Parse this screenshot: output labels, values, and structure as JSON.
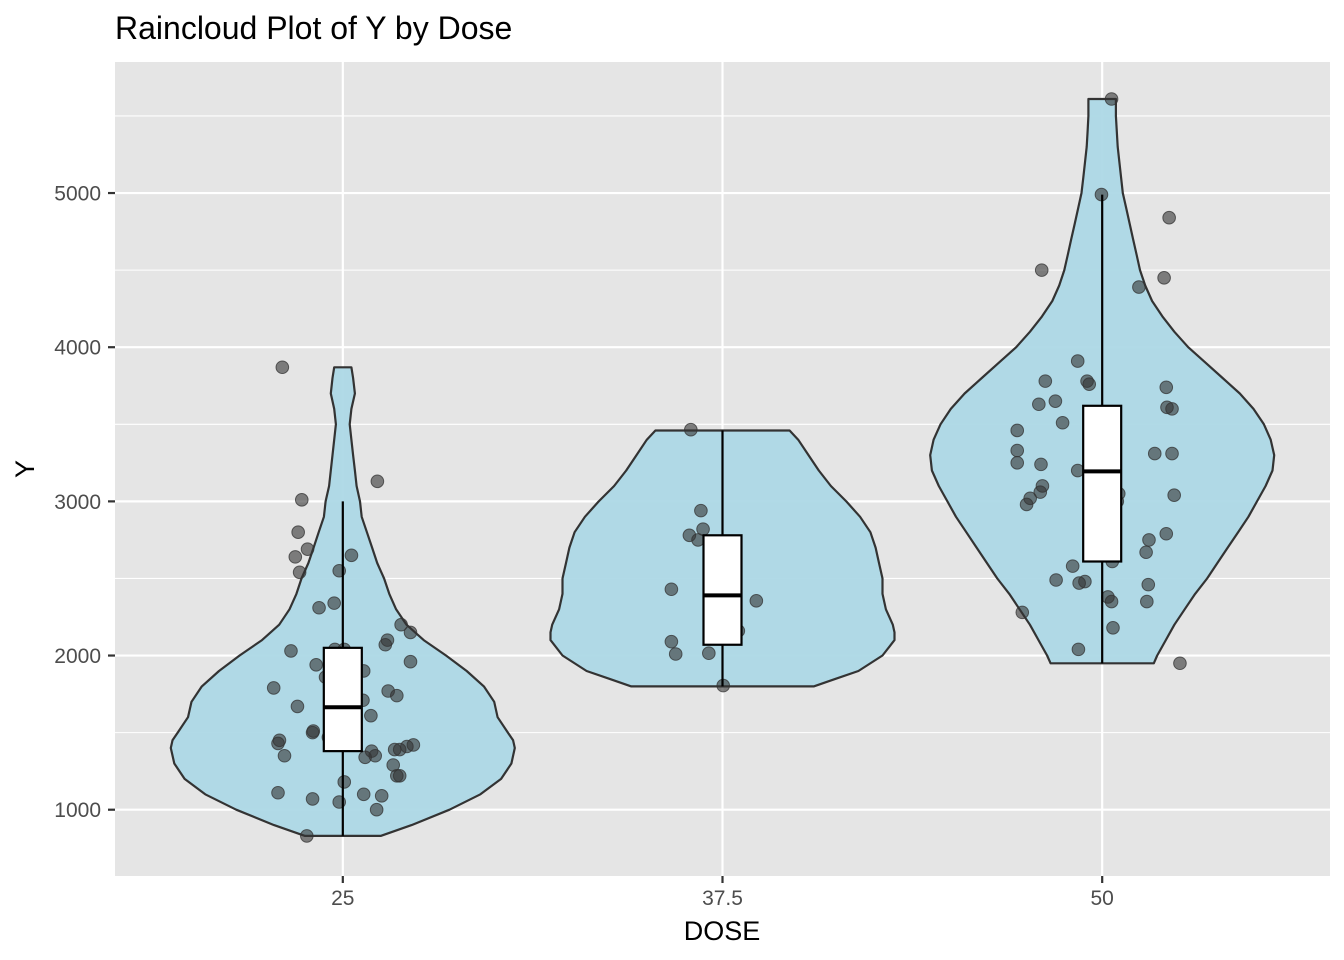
{
  "chart_data": {
    "type": "violin",
    "title": "Raincloud Plot of Y by Dose",
    "xlabel": "DOSE",
    "ylabel": "Y",
    "categories": [
      "25",
      "37.5",
      "50"
    ],
    "yticks": [
      1000,
      2000,
      3000,
      4000,
      5000
    ],
    "ylim": [
      570,
      5850
    ],
    "grid": true,
    "legend": "none",
    "colors": {
      "panel": "#e5e5e5",
      "grid": "#ffffff",
      "violin_fill": "#add8e6",
      "violin_stroke": "#333333",
      "point": "#333333",
      "box_fill": "#ffffff",
      "box_stroke": "#000000",
      "tick_text": "#4d4d4d",
      "tick_mark": "#333333"
    },
    "series": [
      {
        "category": "25",
        "violin": {
          "y": [
            830,
            900,
            1000,
            1100,
            1200,
            1300,
            1400,
            1450,
            1500,
            1600,
            1700,
            1800,
            1900,
            2000,
            2100,
            2200,
            2300,
            2400,
            2500,
            2600,
            2700,
            2800,
            2900,
            3000,
            3100,
            3200,
            3300,
            3400,
            3500,
            3600,
            3700,
            3800,
            3870
          ],
          "width": [
            0.22,
            0.4,
            0.62,
            0.8,
            0.92,
            0.98,
            1.0,
            0.99,
            0.96,
            0.9,
            0.88,
            0.82,
            0.72,
            0.6,
            0.47,
            0.37,
            0.31,
            0.27,
            0.24,
            0.2,
            0.17,
            0.14,
            0.11,
            0.1,
            0.08,
            0.07,
            0.06,
            0.05,
            0.04,
            0.05,
            0.07,
            0.06,
            0.05
          ]
        },
        "box": {
          "lower_whisker": 830,
          "q1": 1380,
          "median": 1665,
          "q3": 2050,
          "upper_whisker": 3000
        },
        "points": [
          {
            "dx": -0.84,
            "y": 3870
          },
          {
            "dx": 0.48,
            "y": 3130
          },
          {
            "dx": -0.57,
            "y": 3010
          },
          {
            "dx": -0.62,
            "y": 2800
          },
          {
            "dx": -0.49,
            "y": 2690
          },
          {
            "dx": -0.66,
            "y": 2640
          },
          {
            "dx": 0.12,
            "y": 2650
          },
          {
            "dx": -0.6,
            "y": 2540
          },
          {
            "dx": -0.05,
            "y": 2550
          },
          {
            "dx": -0.33,
            "y": 2310
          },
          {
            "dx": -0.12,
            "y": 2340
          },
          {
            "dx": 0.81,
            "y": 2200
          },
          {
            "dx": 0.94,
            "y": 2150
          },
          {
            "dx": 0.59,
            "y": 2070
          },
          {
            "dx": 0.62,
            "y": 2100
          },
          {
            "dx": -0.72,
            "y": 2030
          },
          {
            "dx": -0.11,
            "y": 2040
          },
          {
            "dx": 0.02,
            "y": 2040
          },
          {
            "dx": 0.94,
            "y": 1960
          },
          {
            "dx": -0.37,
            "y": 1940
          },
          {
            "dx": 0.29,
            "y": 1900
          },
          {
            "dx": 0.1,
            "y": 1890
          },
          {
            "dx": -0.24,
            "y": 1860
          },
          {
            "dx": 0.12,
            "y": 1810
          },
          {
            "dx": -0.96,
            "y": 1790
          },
          {
            "dx": 0.63,
            "y": 1770
          },
          {
            "dx": 0.75,
            "y": 1740
          },
          {
            "dx": 0.28,
            "y": 1710
          },
          {
            "dx": -0.63,
            "y": 1670
          },
          {
            "dx": 0.15,
            "y": 1630
          },
          {
            "dx": 0.39,
            "y": 1610
          },
          {
            "dx": -0.09,
            "y": 1520
          },
          {
            "dx": -0.42,
            "y": 1500
          },
          {
            "dx": -0.41,
            "y": 1510
          },
          {
            "dx": 0.13,
            "y": 1480
          },
          {
            "dx": -0.2,
            "y": 1470
          },
          {
            "dx": 0.03,
            "y": 1450
          },
          {
            "dx": -0.88,
            "y": 1450
          },
          {
            "dx": -0.9,
            "y": 1430
          },
          {
            "dx": 0.89,
            "y": 1410
          },
          {
            "dx": 0.98,
            "y": 1420
          },
          {
            "dx": 0.72,
            "y": 1390
          },
          {
            "dx": 0.4,
            "y": 1380
          },
          {
            "dx": 0.79,
            "y": 1390
          },
          {
            "dx": 0.45,
            "y": 1350
          },
          {
            "dx": 0.31,
            "y": 1340
          },
          {
            "dx": -0.81,
            "y": 1350
          },
          {
            "dx": 0.7,
            "y": 1290
          },
          {
            "dx": 0.75,
            "y": 1220
          },
          {
            "dx": 0.79,
            "y": 1220
          },
          {
            "dx": 0.02,
            "y": 1180
          },
          {
            "dx": -0.9,
            "y": 1110
          },
          {
            "dx": 0.29,
            "y": 1100
          },
          {
            "dx": 0.54,
            "y": 1090
          },
          {
            "dx": -0.42,
            "y": 1070
          },
          {
            "dx": -0.05,
            "y": 1050
          },
          {
            "dx": 0.47,
            "y": 1000
          },
          {
            "dx": -0.5,
            "y": 830
          }
        ]
      },
      {
        "category": "37.5",
        "violin": {
          "y": [
            1800,
            1850,
            1900,
            2000,
            2100,
            2150,
            2200,
            2300,
            2400,
            2500,
            2600,
            2700,
            2800,
            2900,
            3000,
            3100,
            3200,
            3300,
            3400,
            3460
          ],
          "width": [
            0.53,
            0.66,
            0.79,
            0.93,
            1.0,
            1.0,
            0.99,
            0.95,
            0.93,
            0.93,
            0.91,
            0.89,
            0.86,
            0.8,
            0.72,
            0.63,
            0.56,
            0.5,
            0.44,
            0.39
          ]
        },
        "box": {
          "lower_whisker": 1800,
          "q1": 2070,
          "median": 2390,
          "q3": 2780,
          "upper_whisker": 3460
        },
        "points": [
          {
            "dx": -0.44,
            "y": 3465
          },
          {
            "dx": -0.3,
            "y": 2940
          },
          {
            "dx": -0.27,
            "y": 2820
          },
          {
            "dx": -0.46,
            "y": 2780
          },
          {
            "dx": -0.34,
            "y": 2750
          },
          {
            "dx": -0.71,
            "y": 2430
          },
          {
            "dx": 0.47,
            "y": 2355
          },
          {
            "dx": 0.22,
            "y": 2160
          },
          {
            "dx": -0.71,
            "y": 2090
          },
          {
            "dx": -0.65,
            "y": 2010
          },
          {
            "dx": -0.19,
            "y": 2015
          },
          {
            "dx": 0.01,
            "y": 1805
          }
        ]
      },
      {
        "category": "50",
        "violin": {
          "y": [
            1950,
            2000,
            2100,
            2200,
            2300,
            2400,
            2500,
            2600,
            2700,
            2800,
            2900,
            3000,
            3100,
            3200,
            3300,
            3400,
            3500,
            3600,
            3700,
            3800,
            3900,
            4000,
            4100,
            4200,
            4300,
            4400,
            4500,
            4600,
            4700,
            4800,
            4900,
            5000,
            5100,
            5200,
            5300,
            5400,
            5500,
            5610
          ],
          "width": [
            0.3,
            0.32,
            0.37,
            0.42,
            0.48,
            0.54,
            0.61,
            0.67,
            0.73,
            0.79,
            0.85,
            0.9,
            0.95,
            0.99,
            1.0,
            0.98,
            0.94,
            0.88,
            0.8,
            0.7,
            0.6,
            0.5,
            0.42,
            0.35,
            0.29,
            0.25,
            0.22,
            0.2,
            0.18,
            0.16,
            0.14,
            0.12,
            0.11,
            0.1,
            0.09,
            0.085,
            0.08,
            0.08
          ]
        },
        "box": {
          "lower_whisker": 1950,
          "q1": 2610,
          "median": 3195,
          "q3": 3620,
          "upper_whisker": 4990
        },
        "points": [
          {
            "dx": 0.13,
            "y": 5610
          },
          {
            "dx": -0.01,
            "y": 4990
          },
          {
            "dx": 0.93,
            "y": 4840
          },
          {
            "dx": -0.84,
            "y": 4500
          },
          {
            "dx": 0.86,
            "y": 4450
          },
          {
            "dx": 0.51,
            "y": 4390
          },
          {
            "dx": -0.34,
            "y": 3910
          },
          {
            "dx": -0.79,
            "y": 3780
          },
          {
            "dx": -0.21,
            "y": 3780
          },
          {
            "dx": -0.18,
            "y": 3760
          },
          {
            "dx": 0.89,
            "y": 3740
          },
          {
            "dx": -0.65,
            "y": 3650
          },
          {
            "dx": -0.88,
            "y": 3630
          },
          {
            "dx": 0.9,
            "y": 3610
          },
          {
            "dx": 0.97,
            "y": 3600
          },
          {
            "dx": -0.55,
            "y": 3510
          },
          {
            "dx": 0.02,
            "y": 3510
          },
          {
            "dx": -1.18,
            "y": 3460
          },
          {
            "dx": 0.11,
            "y": 3410
          },
          {
            "dx": -1.18,
            "y": 3330
          },
          {
            "dx": 0.73,
            "y": 3310
          },
          {
            "dx": 0.97,
            "y": 3310
          },
          {
            "dx": -1.18,
            "y": 3250
          },
          {
            "dx": -0.85,
            "y": 3240
          },
          {
            "dx": -0.34,
            "y": 3200
          },
          {
            "dx": -0.83,
            "y": 3100
          },
          {
            "dx": -0.86,
            "y": 3060
          },
          {
            "dx": 0.23,
            "y": 3050
          },
          {
            "dx": -1.0,
            "y": 3020
          },
          {
            "dx": 0.21,
            "y": 3000
          },
          {
            "dx": -1.05,
            "y": 2980
          },
          {
            "dx": 1.0,
            "y": 3040
          },
          {
            "dx": 0.89,
            "y": 2790
          },
          {
            "dx": 0.65,
            "y": 2750
          },
          {
            "dx": 0.61,
            "y": 2670
          },
          {
            "dx": 0.14,
            "y": 2610
          },
          {
            "dx": -0.41,
            "y": 2580
          },
          {
            "dx": -0.64,
            "y": 2490
          },
          {
            "dx": -0.24,
            "y": 2480
          },
          {
            "dx": -0.32,
            "y": 2470
          },
          {
            "dx": 0.64,
            "y": 2460
          },
          {
            "dx": 0.08,
            "y": 2380
          },
          {
            "dx": 0.13,
            "y": 2350
          },
          {
            "dx": 0.62,
            "y": 2350
          },
          {
            "dx": -1.11,
            "y": 2280
          },
          {
            "dx": 0.15,
            "y": 2180
          },
          {
            "dx": -0.33,
            "y": 2040
          },
          {
            "dx": 1.08,
            "y": 1950
          }
        ]
      }
    ]
  }
}
